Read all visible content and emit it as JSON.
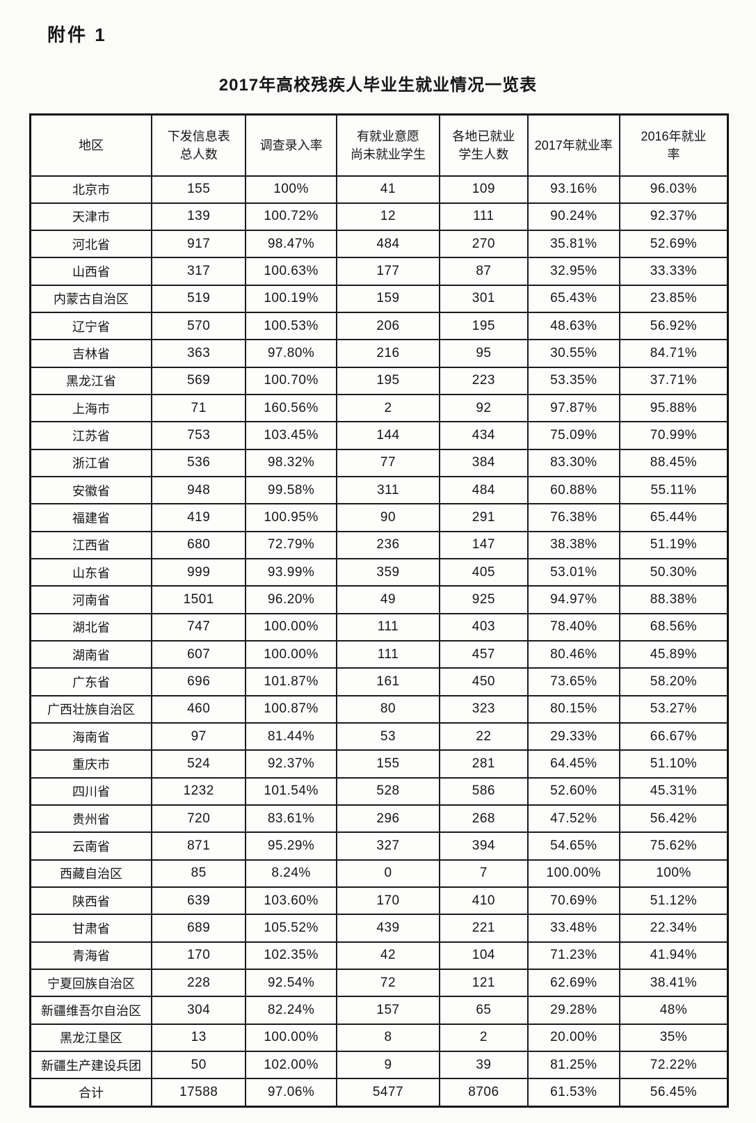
{
  "page": {
    "attachment_label": "附件 1",
    "title": "2017年高校残疾人毕业生就业情况一览表"
  },
  "table": {
    "headers": [
      "地区",
      "下发信息表\n总人数",
      "调查录入率",
      "有就业意愿\n尚未就业学生",
      "各地已就业\n学生人数",
      "2017年就业率",
      "2016年就业\n率"
    ],
    "rows": [
      [
        "北京市",
        "155",
        "100%",
        "41",
        "109",
        "93.16%",
        "96.03%"
      ],
      [
        "天津市",
        "139",
        "100.72%",
        "12",
        "111",
        "90.24%",
        "92.37%"
      ],
      [
        "河北省",
        "917",
        "98.47%",
        "484",
        "270",
        "35.81%",
        "52.69%"
      ],
      [
        "山西省",
        "317",
        "100.63%",
        "177",
        "87",
        "32.95%",
        "33.33%"
      ],
      [
        "内蒙古自治区",
        "519",
        "100.19%",
        "159",
        "301",
        "65.43%",
        "23.85%"
      ],
      [
        "辽宁省",
        "570",
        "100.53%",
        "206",
        "195",
        "48.63%",
        "56.92%"
      ],
      [
        "吉林省",
        "363",
        "97.80%",
        "216",
        "95",
        "30.55%",
        "84.71%"
      ],
      [
        "黑龙江省",
        "569",
        "100.70%",
        "195",
        "223",
        "53.35%",
        "37.71%"
      ],
      [
        "上海市",
        "71",
        "160.56%",
        "2",
        "92",
        "97.87%",
        "95.88%"
      ],
      [
        "江苏省",
        "753",
        "103.45%",
        "144",
        "434",
        "75.09%",
        "70.99%"
      ],
      [
        "浙江省",
        "536",
        "98.32%",
        "77",
        "384",
        "83.30%",
        "88.45%"
      ],
      [
        "安徽省",
        "948",
        "99.58%",
        "311",
        "484",
        "60.88%",
        "55.11%"
      ],
      [
        "福建省",
        "419",
        "100.95%",
        "90",
        "291",
        "76.38%",
        "65.44%"
      ],
      [
        "江西省",
        "680",
        "72.79%",
        "236",
        "147",
        "38.38%",
        "51.19%"
      ],
      [
        "山东省",
        "999",
        "93.99%",
        "359",
        "405",
        "53.01%",
        "50.30%"
      ],
      [
        "河南省",
        "1501",
        "96.20%",
        "49",
        "925",
        "94.97%",
        "88.38%"
      ],
      [
        "湖北省",
        "747",
        "100.00%",
        "111",
        "403",
        "78.40%",
        "68.56%"
      ],
      [
        "湖南省",
        "607",
        "100.00%",
        "111",
        "457",
        "80.46%",
        "45.89%"
      ],
      [
        "广东省",
        "696",
        "101.87%",
        "161",
        "450",
        "73.65%",
        "58.20%"
      ],
      [
        "广西壮族自治区",
        "460",
        "100.87%",
        "80",
        "323",
        "80.15%",
        "53.27%"
      ],
      [
        "海南省",
        "97",
        "81.44%",
        "53",
        "22",
        "29.33%",
        "66.67%"
      ],
      [
        "重庆市",
        "524",
        "92.37%",
        "155",
        "281",
        "64.45%",
        "51.10%"
      ],
      [
        "四川省",
        "1232",
        "101.54%",
        "528",
        "586",
        "52.60%",
        "45.31%"
      ],
      [
        "贵州省",
        "720",
        "83.61%",
        "296",
        "268",
        "47.52%",
        "56.42%"
      ],
      [
        "云南省",
        "871",
        "95.29%",
        "327",
        "394",
        "54.65%",
        "75.62%"
      ],
      [
        "西藏自治区",
        "85",
        "8.24%",
        "0",
        "7",
        "100.00%",
        "100%"
      ],
      [
        "陕西省",
        "639",
        "103.60%",
        "170",
        "410",
        "70.69%",
        "51.12%"
      ],
      [
        "甘肃省",
        "689",
        "105.52%",
        "439",
        "221",
        "33.48%",
        "22.34%"
      ],
      [
        "青海省",
        "170",
        "102.35%",
        "42",
        "104",
        "71.23%",
        "41.94%"
      ],
      [
        "宁夏回族自治区",
        "228",
        "92.54%",
        "72",
        "121",
        "62.69%",
        "38.41%"
      ],
      [
        "新疆维吾尔自治区",
        "304",
        "82.24%",
        "157",
        "65",
        "29.28%",
        "48%"
      ],
      [
        "黑龙江垦区",
        "13",
        "100.00%",
        "8",
        "2",
        "20.00%",
        "35%"
      ],
      [
        "新疆生产建设兵团",
        "50",
        "102.00%",
        "9",
        "39",
        "81.25%",
        "72.22%"
      ],
      [
        "合计",
        "17588",
        "97.06%",
        "5477",
        "8706",
        "61.53%",
        "56.45%"
      ]
    ]
  }
}
